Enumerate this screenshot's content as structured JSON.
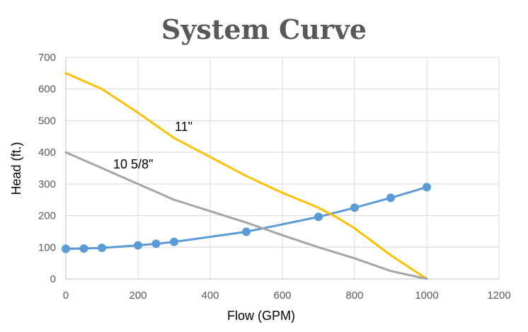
{
  "chart_data": {
    "type": "line",
    "title": "System Curve",
    "xlabel": "Flow (GPM)",
    "ylabel": "Head (ft.)",
    "xlim": [
      0,
      1200
    ],
    "ylim": [
      0,
      700
    ],
    "x_ticks": [
      "0",
      "200",
      "400",
      "600",
      "800",
      "1000",
      "1200"
    ],
    "y_ticks": [
      "0",
      "100",
      "200",
      "300",
      "400",
      "500",
      "600",
      "700"
    ],
    "grid": true,
    "annotations": [
      "11\"",
      "10 5/8\""
    ],
    "series": [
      {
        "color": "#5b9bd5",
        "markers": true,
        "x": [
          0,
          50,
          100,
          200,
          250,
          300,
          500,
          700,
          800,
          900,
          1000
        ],
        "y": [
          95,
          96,
          98,
          106,
          111,
          117,
          149,
          196,
          225,
          256,
          290
        ]
      },
      {
        "color": "#ffc000",
        "markers": false,
        "x": [
          0,
          100,
          200,
          300,
          400,
          500,
          600,
          700,
          750,
          800,
          900,
          1000
        ],
        "y": [
          650,
          600,
          525,
          445,
          385,
          325,
          272,
          225,
          195,
          160,
          75,
          0
        ]
      },
      {
        "color": "#a5a5a5",
        "markers": false,
        "x": [
          0,
          100,
          200,
          250,
          300,
          400,
          500,
          600,
          700,
          800,
          900,
          1000
        ],
        "y": [
          400,
          350,
          300,
          275,
          250,
          214,
          178,
          138,
          100,
          65,
          25,
          0
        ]
      }
    ]
  }
}
